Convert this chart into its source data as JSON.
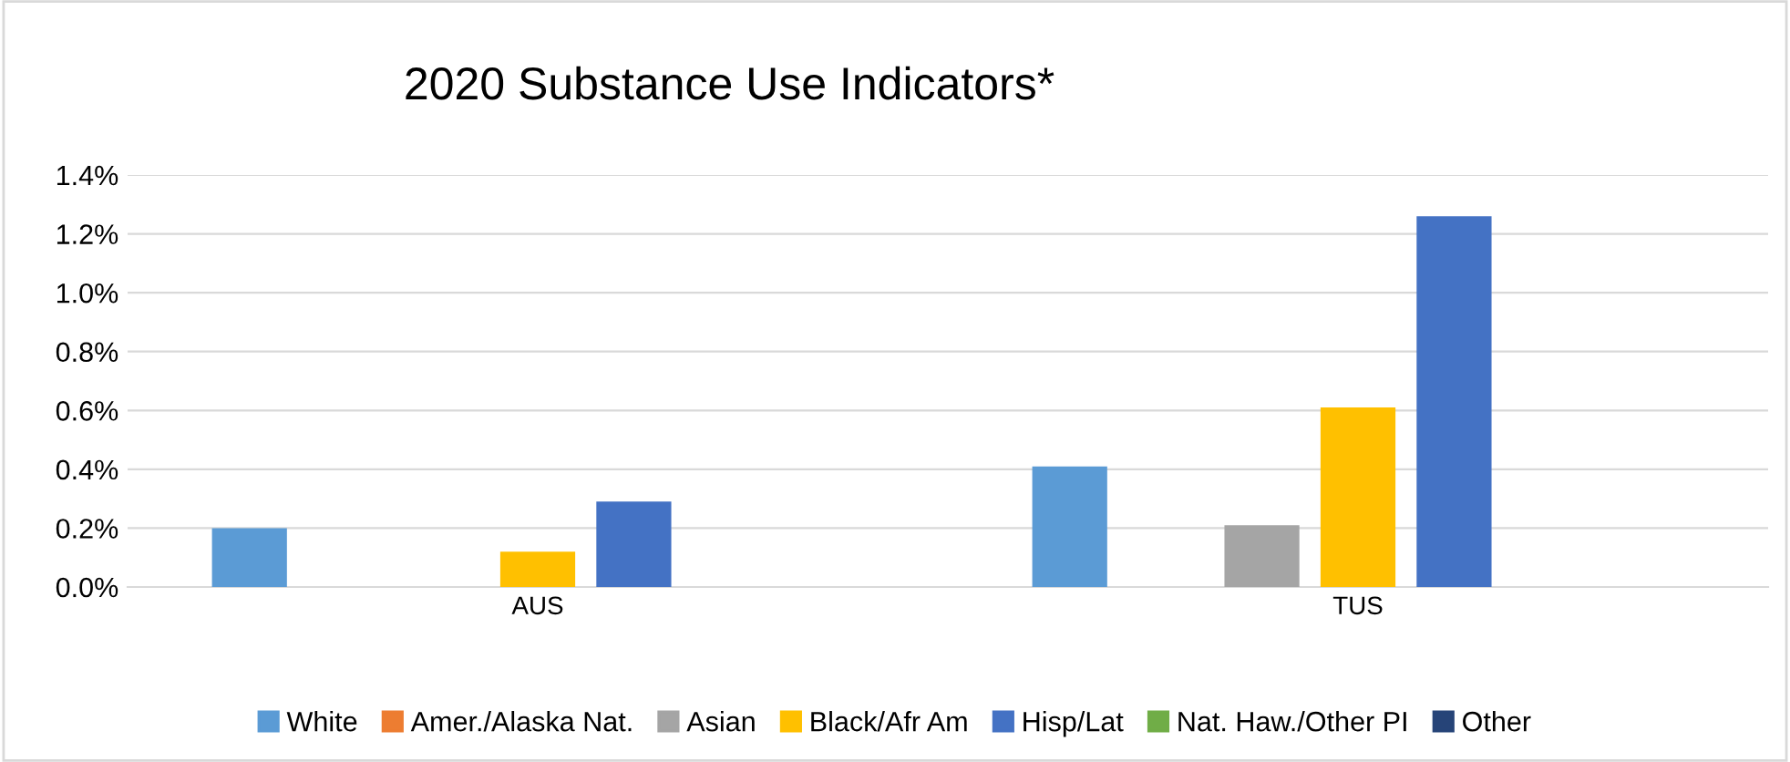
{
  "chart_data": {
    "type": "bar",
    "title": "2020 Substance Use Indicators*",
    "categories": [
      "AUS",
      "TUS"
    ],
    "series": [
      {
        "name": "White",
        "color": "#5b9bd5",
        "values": [
          0.2,
          0.41
        ]
      },
      {
        "name": "Amer./Alaska Nat.",
        "color": "#ed7d31",
        "values": [
          0,
          0
        ]
      },
      {
        "name": "Asian",
        "color": "#a5a5a5",
        "values": [
          0,
          0.21
        ]
      },
      {
        "name": "Black/Afr Am",
        "color": "#ffc000",
        "values": [
          0.12,
          0.61
        ]
      },
      {
        "name": "Hisp/Lat",
        "color": "#4472c4",
        "values": [
          0.29,
          1.26
        ]
      },
      {
        "name": "Nat. Haw./Other PI",
        "color": "#70ad47",
        "values": [
          0,
          0
        ]
      },
      {
        "name": "Other",
        "color": "#264478",
        "values": [
          0,
          0
        ]
      }
    ],
    "ylim": [
      0,
      1.4
    ],
    "yticks": [
      {
        "value": 0,
        "label": "0.0%"
      },
      {
        "value": 0.2,
        "label": "0.2%"
      },
      {
        "value": 0.4,
        "label": "0.4%"
      },
      {
        "value": 0.6,
        "label": "0.6%"
      },
      {
        "value": 0.8,
        "label": "0.8%"
      },
      {
        "value": 1.0,
        "label": "1.0%"
      },
      {
        "value": 1.2,
        "label": "1.2%"
      },
      {
        "value": 1.4,
        "label": "1.4%"
      }
    ],
    "grid": "y",
    "legend": "bottom"
  }
}
